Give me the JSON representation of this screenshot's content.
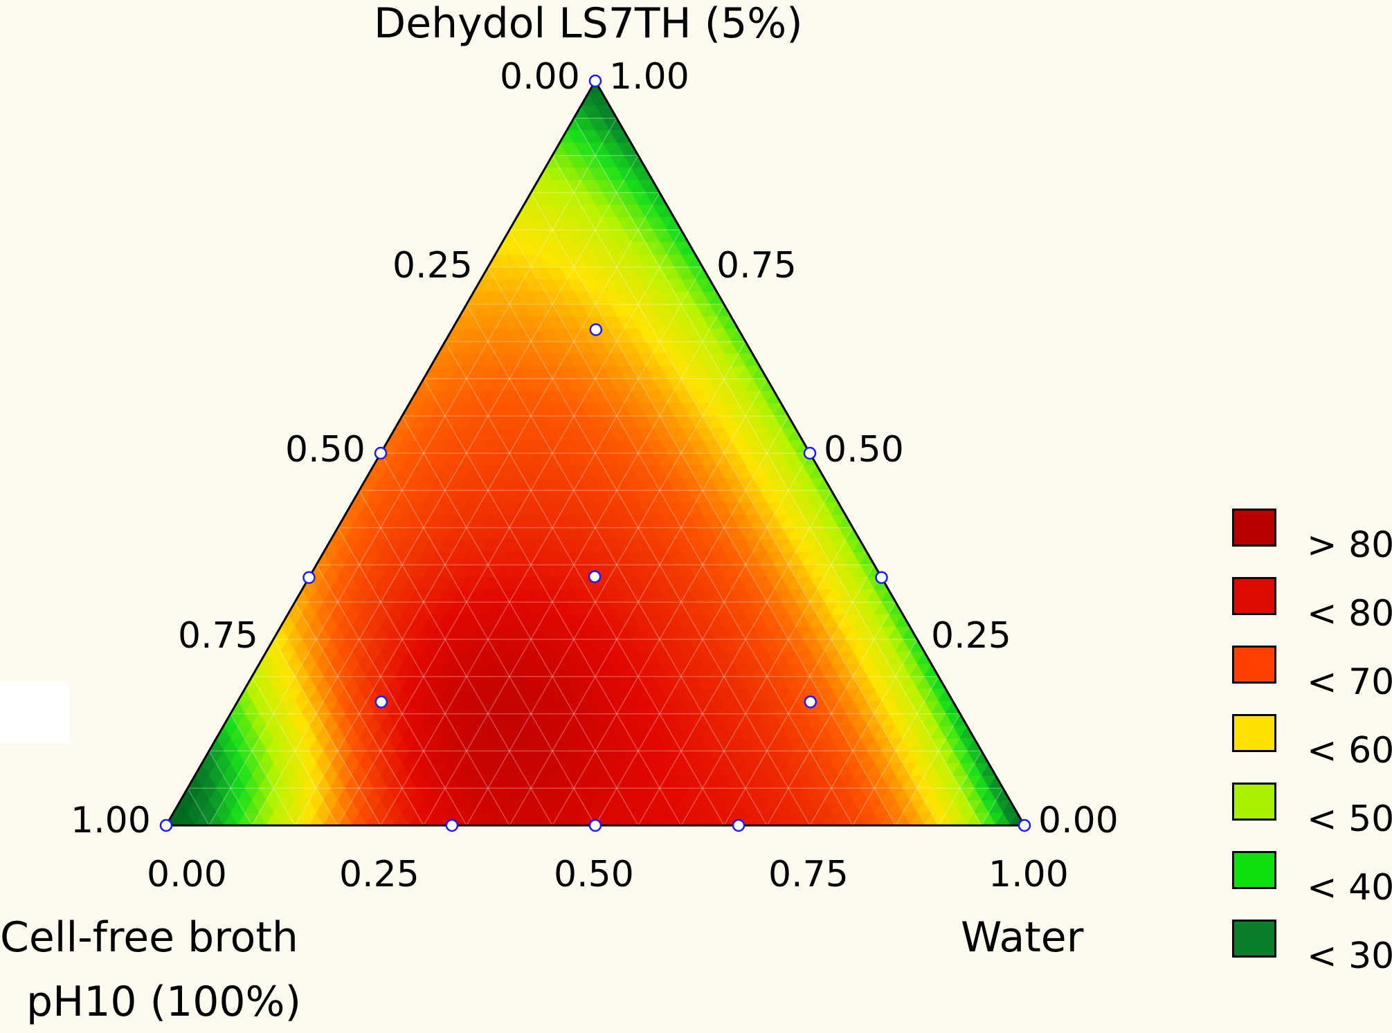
{
  "chart_data": {
    "type": "ternary-contour",
    "components": {
      "top": "Dehydol LS7TH (5%)",
      "left": "Cell-free broth pH10 (100%)",
      "left_line1": "Cell-free broth",
      "left_line2": "pH10 (100%)",
      "right": "Water"
    },
    "ticks": {
      "bottom": [
        "0.00",
        "0.25",
        "0.50",
        "0.75",
        "1.00"
      ],
      "left_edge": [
        "0.00",
        "0.25",
        "0.50",
        "0.75",
        "1.00"
      ],
      "right_edge": [
        "1.00",
        "0.75",
        "0.50",
        "0.25",
        "0.00"
      ]
    },
    "design_points": [
      {
        "broth": 0.0,
        "water": 0.0,
        "dehydol": 1.0
      },
      {
        "broth": 0.5,
        "water": 0.0,
        "dehydol": 0.5
      },
      {
        "broth": 0.0,
        "water": 0.5,
        "dehydol": 0.5
      },
      {
        "broth": 0.333,
        "water": 0.333,
        "dehydol": 0.333
      },
      {
        "broth": 1.0,
        "water": 0.0,
        "dehydol": 0.0
      },
      {
        "broth": 0.0,
        "water": 1.0,
        "dehydol": 0.0
      },
      {
        "broth": 0.5,
        "water": 0.5,
        "dehydol": 0.0
      },
      {
        "broth": 0.167,
        "water": 0.167,
        "dehydol": 0.667
      },
      {
        "broth": 0.667,
        "water": 0.167,
        "dehydol": 0.167
      },
      {
        "broth": 0.167,
        "water": 0.667,
        "dehydol": 0.167
      },
      {
        "broth": 0.667,
        "water": 0.333,
        "dehydol": 0.0
      },
      {
        "broth": 0.333,
        "water": 0.667,
        "dehydol": 0.0
      },
      {
        "broth": 0.667,
        "water": 0.0,
        "dehydol": 0.333
      },
      {
        "broth": 0.0,
        "water": 0.667,
        "dehydol": 0.333
      }
    ],
    "legend": [
      {
        "label": "> 80",
        "color": "#b80000"
      },
      {
        "label": "< 80",
        "color": "#dd0a00"
      },
      {
        "label": "< 70",
        "color": "#ff4000"
      },
      {
        "label": "< 60",
        "color": "#ffe000"
      },
      {
        "label": "< 50",
        "color": "#a8f000"
      },
      {
        "label": "< 40",
        "color": "#10e010"
      },
      {
        "label": "< 30",
        "color": "#0a7e2a"
      }
    ],
    "legend_placement": "right",
    "grid": true
  }
}
